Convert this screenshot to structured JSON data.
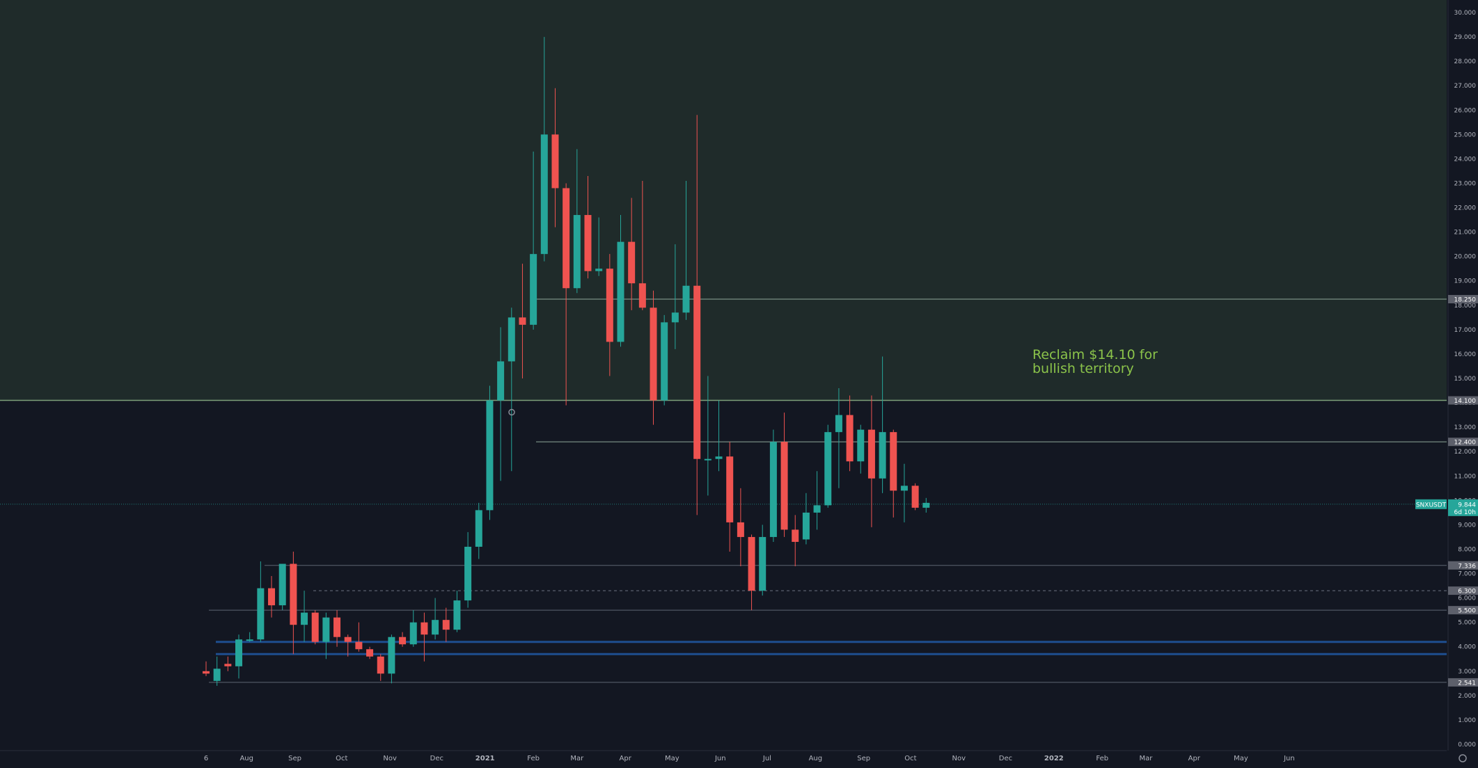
{
  "colors": {
    "background": "#131722",
    "zone_fill": "#1f2b2a",
    "bull": "#26a69a",
    "bear": "#ef5350",
    "grid_line": "#5d6673",
    "resistance_line": "#8fa89a",
    "support_band": "#1e4e8f",
    "annotation": "#8bc34a",
    "axis_text": "#b2b5be",
    "label_bg": "#5d606b"
  },
  "chart_data": {
    "type": "candlestick",
    "title": "",
    "xlabel": "",
    "ylabel": "",
    "ylim": [
      0,
      30.6
    ],
    "y_ticks": [
      "0.000",
      "1.000",
      "2.000",
      "3.000",
      "4.000",
      "5.000",
      "6.000",
      "7.000",
      "8.000",
      "9.000",
      "10.000",
      "11.000",
      "12.000",
      "13.000",
      "14.000",
      "15.000",
      "16.000",
      "17.000",
      "18.000",
      "19.000",
      "20.000",
      "21.000",
      "22.000",
      "23.000",
      "24.000",
      "25.000",
      "26.000",
      "27.000",
      "28.000",
      "29.000",
      "30.000"
    ],
    "x_ticks": [
      {
        "label": "6",
        "date": "2020-07-06"
      },
      {
        "label": "Aug",
        "date": "2020-08-01"
      },
      {
        "label": "Sep",
        "date": "2020-09-01"
      },
      {
        "label": "Oct",
        "date": "2020-10-01"
      },
      {
        "label": "Nov",
        "date": "2020-11-01"
      },
      {
        "label": "Dec",
        "date": "2020-12-01"
      },
      {
        "label": "2021",
        "date": "2021-01-01"
      },
      {
        "label": "Feb",
        "date": "2021-02-01"
      },
      {
        "label": "Mar",
        "date": "2021-03-01"
      },
      {
        "label": "Apr",
        "date": "2021-04-01"
      },
      {
        "label": "May",
        "date": "2021-05-01"
      },
      {
        "label": "Jun",
        "date": "2021-06-01"
      },
      {
        "label": "Jul",
        "date": "2021-07-01"
      },
      {
        "label": "Aug",
        "date": "2021-08-01"
      },
      {
        "label": "Sep",
        "date": "2021-09-01"
      },
      {
        "label": "Oct",
        "date": "2021-10-01"
      },
      {
        "label": "Nov",
        "date": "2021-11-01"
      },
      {
        "label": "Dec",
        "date": "2021-12-01"
      },
      {
        "label": "2022",
        "date": "2022-01-01"
      },
      {
        "label": "Feb",
        "date": "2022-02-01"
      },
      {
        "label": "Mar",
        "date": "2022-03-01"
      },
      {
        "label": "Apr",
        "date": "2022-04-01"
      },
      {
        "label": "May",
        "date": "2022-05-01"
      },
      {
        "label": "Jun",
        "date": "2022-06-01"
      }
    ],
    "candles": [
      {
        "date": "2020-07-06",
        "open": 3.0,
        "high": 3.4,
        "low": 2.8,
        "close": 2.9
      },
      {
        "date": "2020-07-13",
        "open": 2.6,
        "high": 3.6,
        "low": 2.4,
        "close": 3.1
      },
      {
        "date": "2020-07-20",
        "open": 3.3,
        "high": 3.6,
        "low": 3.0,
        "close": 3.2
      },
      {
        "date": "2020-07-27",
        "open": 3.2,
        "high": 4.5,
        "low": 2.7,
        "close": 4.3
      },
      {
        "date": "2020-08-03",
        "open": 4.3,
        "high": 4.6,
        "low": 4.2,
        "close": 4.3
      },
      {
        "date": "2020-08-10",
        "open": 4.3,
        "high": 7.5,
        "low": 4.2,
        "close": 6.4
      },
      {
        "date": "2020-08-17",
        "open": 6.4,
        "high": 6.9,
        "low": 5.2,
        "close": 5.7
      },
      {
        "date": "2020-08-24",
        "open": 5.7,
        "high": 7.4,
        "low": 5.5,
        "close": 7.4
      },
      {
        "date": "2020-08-31",
        "open": 7.4,
        "high": 7.9,
        "low": 3.7,
        "close": 4.9
      },
      {
        "date": "2020-09-07",
        "open": 4.9,
        "high": 6.3,
        "low": 4.2,
        "close": 5.4
      },
      {
        "date": "2020-09-14",
        "open": 5.4,
        "high": 5.5,
        "low": 4.1,
        "close": 4.2
      },
      {
        "date": "2020-09-21",
        "open": 4.2,
        "high": 5.4,
        "low": 3.5,
        "close": 5.2
      },
      {
        "date": "2020-09-28",
        "open": 5.2,
        "high": 5.5,
        "low": 4.0,
        "close": 4.4
      },
      {
        "date": "2020-10-05",
        "open": 4.4,
        "high": 4.5,
        "low": 3.6,
        "close": 4.2
      },
      {
        "date": "2020-10-12",
        "open": 4.2,
        "high": 5.0,
        "low": 3.8,
        "close": 3.9
      },
      {
        "date": "2020-10-19",
        "open": 3.9,
        "high": 4.0,
        "low": 3.5,
        "close": 3.6
      },
      {
        "date": "2020-10-26",
        "open": 3.6,
        "high": 3.7,
        "low": 2.6,
        "close": 2.9
      },
      {
        "date": "2020-11-02",
        "open": 2.9,
        "high": 4.5,
        "low": 2.5,
        "close": 4.4
      },
      {
        "date": "2020-11-09",
        "open": 4.4,
        "high": 4.6,
        "low": 4.0,
        "close": 4.1
      },
      {
        "date": "2020-11-16",
        "open": 4.1,
        "high": 5.5,
        "low": 4.0,
        "close": 5.0
      },
      {
        "date": "2020-11-23",
        "open": 5.0,
        "high": 5.4,
        "low": 3.4,
        "close": 4.5
      },
      {
        "date": "2020-11-30",
        "open": 4.5,
        "high": 6.0,
        "low": 4.3,
        "close": 5.1
      },
      {
        "date": "2020-12-07",
        "open": 5.1,
        "high": 5.6,
        "low": 4.2,
        "close": 4.7
      },
      {
        "date": "2020-12-14",
        "open": 4.7,
        "high": 6.3,
        "low": 4.6,
        "close": 5.9
      },
      {
        "date": "2020-12-21",
        "open": 5.9,
        "high": 8.7,
        "low": 5.6,
        "close": 8.1
      },
      {
        "date": "2020-12-28",
        "open": 8.1,
        "high": 9.9,
        "low": 7.6,
        "close": 9.6
      },
      {
        "date": "2021-01-04",
        "open": 9.6,
        "high": 14.7,
        "low": 9.2,
        "close": 14.1
      },
      {
        "date": "2021-01-11",
        "open": 14.1,
        "high": 17.1,
        "low": 10.8,
        "close": 15.7
      },
      {
        "date": "2021-01-18",
        "open": 15.7,
        "high": 17.9,
        "low": 11.2,
        "close": 17.5
      },
      {
        "date": "2021-01-25",
        "open": 17.5,
        "high": 19.7,
        "low": 15.0,
        "close": 17.2
      },
      {
        "date": "2021-02-01",
        "open": 17.2,
        "high": 24.3,
        "low": 17.0,
        "close": 20.1
      },
      {
        "date": "2021-02-08",
        "open": 20.1,
        "high": 29.0,
        "low": 19.8,
        "close": 25.0
      },
      {
        "date": "2021-02-15",
        "open": 25.0,
        "high": 26.9,
        "low": 21.2,
        "close": 22.8
      },
      {
        "date": "2021-02-22",
        "open": 22.8,
        "high": 23.0,
        "low": 13.9,
        "close": 18.7
      },
      {
        "date": "2021-03-01",
        "open": 18.7,
        "high": 24.4,
        "low": 18.5,
        "close": 21.7
      },
      {
        "date": "2021-03-08",
        "open": 21.7,
        "high": 23.3,
        "low": 19.1,
        "close": 19.4
      },
      {
        "date": "2021-03-15",
        "open": 19.4,
        "high": 21.6,
        "low": 19.2,
        "close": 19.5
      },
      {
        "date": "2021-03-22",
        "open": 19.5,
        "high": 20.1,
        "low": 15.1,
        "close": 16.5
      },
      {
        "date": "2021-03-29",
        "open": 16.5,
        "high": 21.7,
        "low": 16.3,
        "close": 20.6
      },
      {
        "date": "2021-04-05",
        "open": 20.6,
        "high": 22.4,
        "low": 17.8,
        "close": 18.9
      },
      {
        "date": "2021-04-12",
        "open": 18.9,
        "high": 23.1,
        "low": 17.8,
        "close": 17.9
      },
      {
        "date": "2021-04-19",
        "open": 17.9,
        "high": 18.6,
        "low": 13.1,
        "close": 14.1
      },
      {
        "date": "2021-04-26",
        "open": 14.1,
        "high": 17.6,
        "low": 13.9,
        "close": 17.3
      },
      {
        "date": "2021-05-03",
        "open": 17.3,
        "high": 20.5,
        "low": 16.2,
        "close": 17.7
      },
      {
        "date": "2021-05-10",
        "open": 17.7,
        "high": 23.1,
        "low": 17.4,
        "close": 18.8
      },
      {
        "date": "2021-05-17",
        "open": 18.8,
        "high": 25.8,
        "low": 9.4,
        "close": 11.7
      },
      {
        "date": "2021-05-24",
        "open": 11.7,
        "high": 15.1,
        "low": 10.2,
        "close": 11.7
      },
      {
        "date": "2021-05-31",
        "open": 11.7,
        "high": 14.1,
        "low": 11.2,
        "close": 11.8
      },
      {
        "date": "2021-06-07",
        "open": 11.8,
        "high": 12.4,
        "low": 7.9,
        "close": 9.1
      },
      {
        "date": "2021-06-14",
        "open": 9.1,
        "high": 10.5,
        "low": 7.3,
        "close": 8.5
      },
      {
        "date": "2021-06-21",
        "open": 8.5,
        "high": 8.6,
        "low": 5.5,
        "close": 6.3
      },
      {
        "date": "2021-06-28",
        "open": 6.3,
        "high": 9.0,
        "low": 6.1,
        "close": 8.5
      },
      {
        "date": "2021-07-05",
        "open": 8.5,
        "high": 12.9,
        "low": 8.3,
        "close": 12.4
      },
      {
        "date": "2021-07-12",
        "open": 12.4,
        "high": 13.6,
        "low": 8.5,
        "close": 8.8
      },
      {
        "date": "2021-07-19",
        "open": 8.8,
        "high": 9.4,
        "low": 7.3,
        "close": 8.3
      },
      {
        "date": "2021-07-26",
        "open": 8.4,
        "high": 10.3,
        "low": 8.2,
        "close": 9.5
      },
      {
        "date": "2021-08-02",
        "open": 9.5,
        "high": 11.2,
        "low": 8.8,
        "close": 9.8
      },
      {
        "date": "2021-08-09",
        "open": 9.8,
        "high": 13.1,
        "low": 9.7,
        "close": 12.8
      },
      {
        "date": "2021-08-16",
        "open": 12.8,
        "high": 14.6,
        "low": 10.5,
        "close": 13.5
      },
      {
        "date": "2021-08-23",
        "open": 13.5,
        "high": 14.3,
        "low": 11.2,
        "close": 11.6
      },
      {
        "date": "2021-08-30",
        "open": 11.6,
        "high": 13.1,
        "low": 11.1,
        "close": 12.9
      },
      {
        "date": "2021-09-06",
        "open": 12.9,
        "high": 14.3,
        "low": 8.9,
        "close": 10.9
      },
      {
        "date": "2021-09-13",
        "open": 10.9,
        "high": 15.9,
        "low": 10.3,
        "close": 12.8
      },
      {
        "date": "2021-09-20",
        "open": 12.8,
        "high": 12.9,
        "low": 9.3,
        "close": 10.4
      },
      {
        "date": "2021-09-27",
        "open": 10.4,
        "high": 11.5,
        "low": 9.1,
        "close": 10.6
      },
      {
        "date": "2021-10-04",
        "open": 10.6,
        "high": 10.7,
        "low": 9.6,
        "close": 9.7
      },
      {
        "date": "2021-10-11",
        "open": 9.7,
        "high": 10.1,
        "low": 9.5,
        "close": 9.9
      }
    ],
    "annotation": {
      "line1": "Reclaim $14.10 for",
      "line2": "bullish territory"
    },
    "levels": [
      {
        "value": 18.25,
        "label": "18.250",
        "kind": "resistance"
      },
      {
        "value": 14.1,
        "label": "14.100",
        "kind": "key"
      },
      {
        "value": 12.4,
        "label": "12.400",
        "kind": "resistance"
      },
      {
        "value": 7.336,
        "label": "7.336",
        "kind": "support"
      },
      {
        "value": 6.3,
        "label": "6.300",
        "kind": "dashed"
      },
      {
        "value": 5.5,
        "label": "5.500",
        "kind": "support"
      },
      {
        "value": 2.541,
        "label": "2.541",
        "kind": "support"
      }
    ],
    "support_bands": [
      4.2,
      3.7
    ],
    "current_price": {
      "symbol": "SNXUSDT",
      "price": "9.844",
      "countdown": "6d 10h",
      "value": 9.844
    },
    "grid": false
  }
}
